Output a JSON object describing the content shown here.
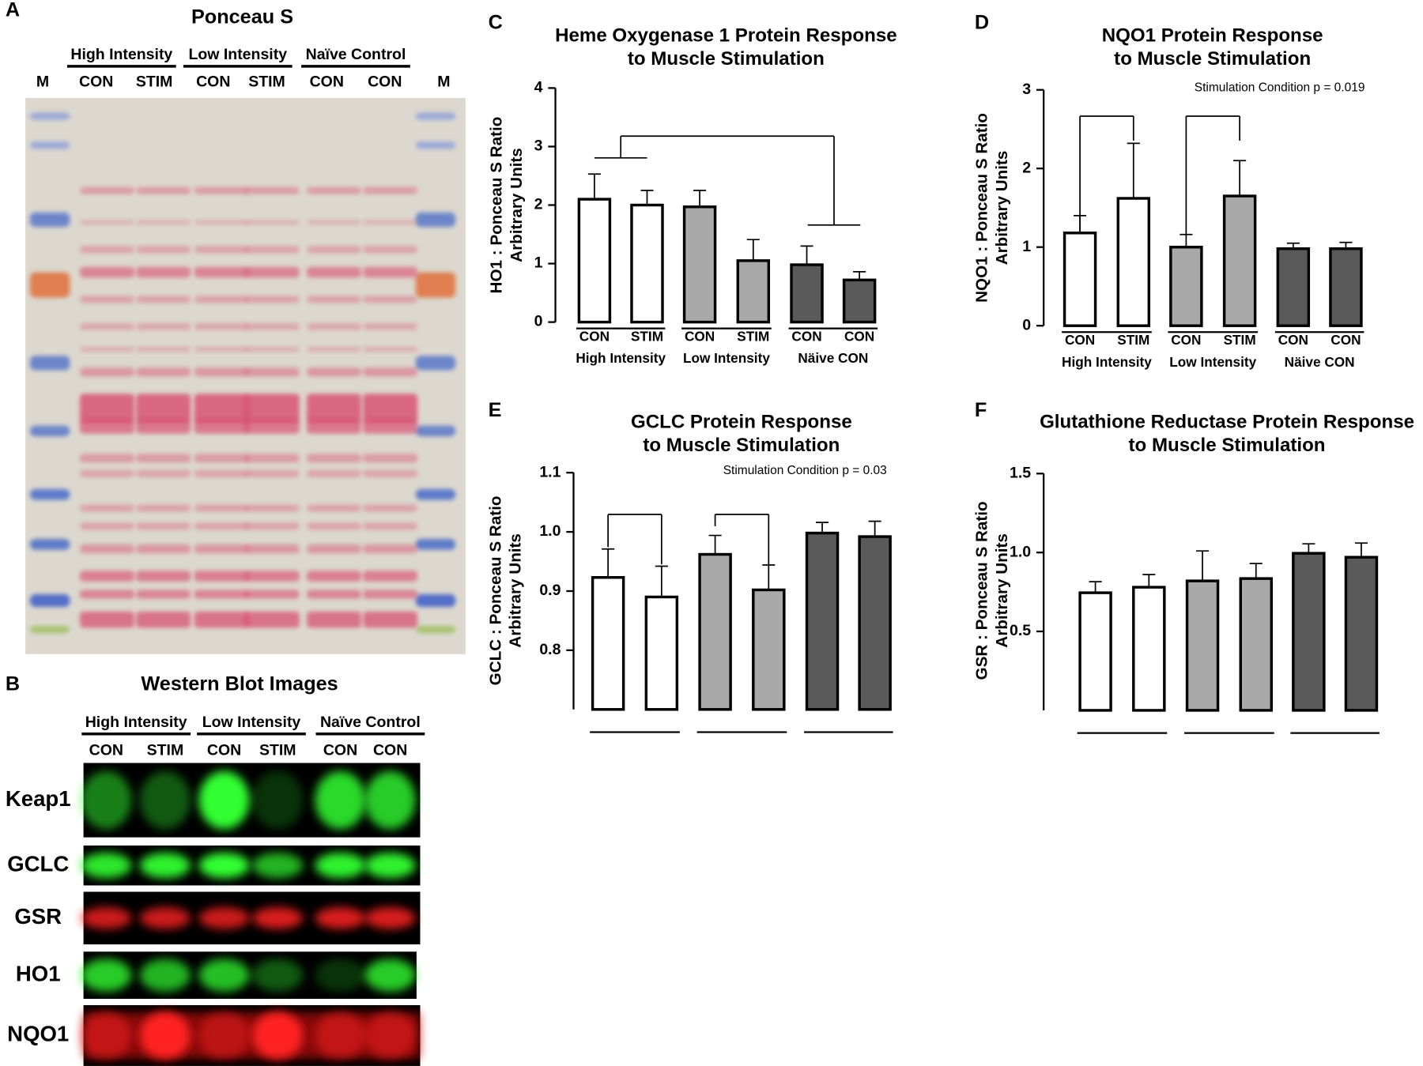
{
  "panel_labels": [
    "A",
    "B",
    "C",
    "D",
    "E",
    "F"
  ],
  "ponceau": {
    "title": "Ponceau S",
    "groups": [
      "High Intensity",
      "Low Intensity",
      "Naïve Control"
    ],
    "lanes": [
      "M",
      "CON",
      "STIM",
      "CON",
      "STIM",
      "CON",
      "CON",
      "M"
    ]
  },
  "western": {
    "title": "Western Blot Images",
    "groups": [
      "High Intensity",
      "Low Intensity",
      "Naïve Control"
    ],
    "lanes": [
      "CON",
      "STIM",
      "CON",
      "STIM",
      "CON",
      "CON"
    ],
    "rows": [
      "Keap1",
      "GCLC",
      "GSR",
      "HO1",
      "NQO1"
    ]
  },
  "chart_data": [
    {
      "type": "bar",
      "title": [
        "Heme Oxygenase 1 Protein Response",
        "to Muscle Stimulation"
      ],
      "ylabel": [
        "HO1 : Ponceau S Ratio",
        "Arbitrary Units"
      ],
      "categories": [
        "CON",
        "STIM",
        "CON",
        "STIM",
        "CON",
        "CON"
      ],
      "groups": [
        "High Intensity",
        "Low Intensity",
        "Näive CON"
      ],
      "values": [
        2.1,
        2.0,
        1.97,
        1.05,
        0.98,
        0.72
      ],
      "errors": [
        0.43,
        0.25,
        0.28,
        0.36,
        0.32,
        0.14
      ],
      "colors": [
        "#ffffff",
        "#ffffff",
        "#a9a9a9",
        "#a9a9a9",
        "#5a5a5a",
        "#5a5a5a"
      ],
      "ylim": [
        0,
        4
      ],
      "yticks": [
        0,
        1,
        2,
        3,
        4
      ]
    },
    {
      "type": "bar",
      "title": [
        "NQO1 Protein Response",
        "to Muscle Stimulation"
      ],
      "ylabel": [
        "NQO1 : Ponceau S Ratio",
        "Arbitrary Units"
      ],
      "annotation": "Stimulation Condition p = 0.019",
      "categories": [
        "CON",
        "STIM",
        "CON",
        "STIM",
        "CON",
        "CON"
      ],
      "groups": [
        "High Intensity",
        "Low Intensity",
        "Näive CON"
      ],
      "values": [
        1.18,
        1.62,
        1.0,
        1.65,
        0.98,
        0.98
      ],
      "errors": [
        0.22,
        0.7,
        0.16,
        0.45,
        0.07,
        0.08
      ],
      "colors": [
        "#ffffff",
        "#ffffff",
        "#a9a9a9",
        "#a9a9a9",
        "#5a5a5a",
        "#5a5a5a"
      ],
      "ylim": [
        0,
        3
      ],
      "yticks": [
        0,
        1,
        2,
        3
      ]
    },
    {
      "type": "bar",
      "title": [
        "GCLC Protein Response",
        "to Muscle Stimulation"
      ],
      "ylabel": [
        "GCLC : Ponceau S Ratio",
        "Arbitrary Units"
      ],
      "annotation": "Stimulation Condition p = 0.03",
      "values": [
        0.923,
        0.89,
        0.962,
        0.902,
        0.998,
        0.992
      ],
      "errors": [
        0.048,
        0.052,
        0.032,
        0.042,
        0.018,
        0.026
      ],
      "colors": [
        "#ffffff",
        "#ffffff",
        "#a9a9a9",
        "#a9a9a9",
        "#5a5a5a",
        "#5a5a5a"
      ],
      "ylim": [
        0.7,
        1.1
      ],
      "yticks": [
        0.8,
        0.9,
        {
          "value": 1,
          "label": "1.0"
        },
        1.1
      ]
    },
    {
      "type": "bar",
      "title": [
        "Glutathione Reductase Protein Response",
        "to Muscle Stimulation"
      ],
      "ylabel": [
        "GSR : Ponceau S Ratio",
        "Arbitrary Units"
      ],
      "values": [
        0.745,
        0.78,
        0.82,
        0.835,
        0.995,
        0.97
      ],
      "errors": [
        0.07,
        0.08,
        0.19,
        0.095,
        0.06,
        0.09
      ],
      "colors": [
        "#ffffff",
        "#ffffff",
        "#a9a9a9",
        "#a9a9a9",
        "#5a5a5a",
        "#5a5a5a"
      ],
      "ylim": [
        0,
        1.5
      ],
      "yticks": [
        0.5,
        {
          "value": 1,
          "label": "1.0"
        },
        1.5
      ]
    }
  ]
}
